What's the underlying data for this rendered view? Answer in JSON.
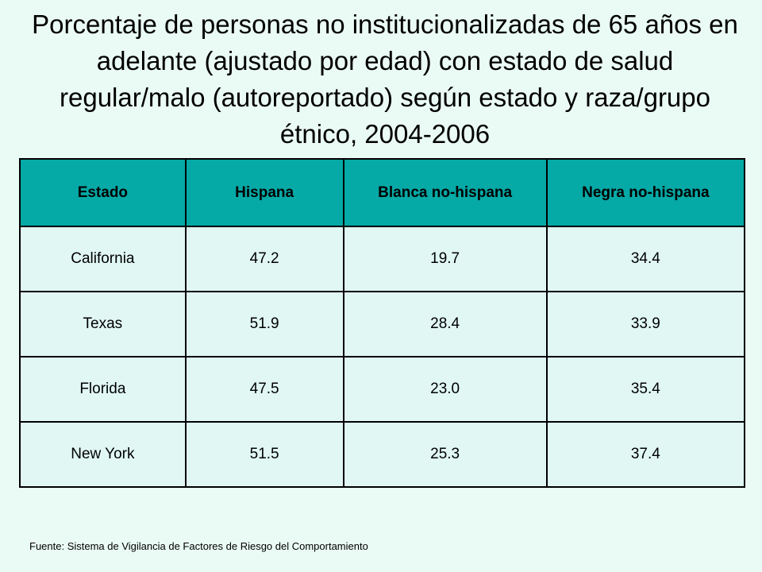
{
  "title": "Porcentaje de personas no institucionalizadas de 65 años en adelante (ajustado por edad) con estado de salud regular/malo (autoreportado) según estado y raza/grupo étnico, 2004-2006",
  "table": {
    "headers": [
      "Estado",
      "Hispana",
      "Blanca no-hispana",
      "Negra no-hispana"
    ],
    "rows": [
      [
        "California",
        "47.2",
        "19.7",
        "34.4"
      ],
      [
        "Texas",
        "51.9",
        "28.4",
        "33.9"
      ],
      [
        "Florida",
        "47.5",
        "23.0",
        "35.4"
      ],
      [
        "New York",
        "51.5",
        "25.3",
        "37.4"
      ]
    ]
  },
  "source": "Fuente: Sistema de Vigilancia de Factores de Riesgo del Comportamiento",
  "colors": {
    "background": "#eafaf4",
    "header_fill": "#05a9a6",
    "cell_fill": "#e0f7f3",
    "border": "#000000"
  }
}
